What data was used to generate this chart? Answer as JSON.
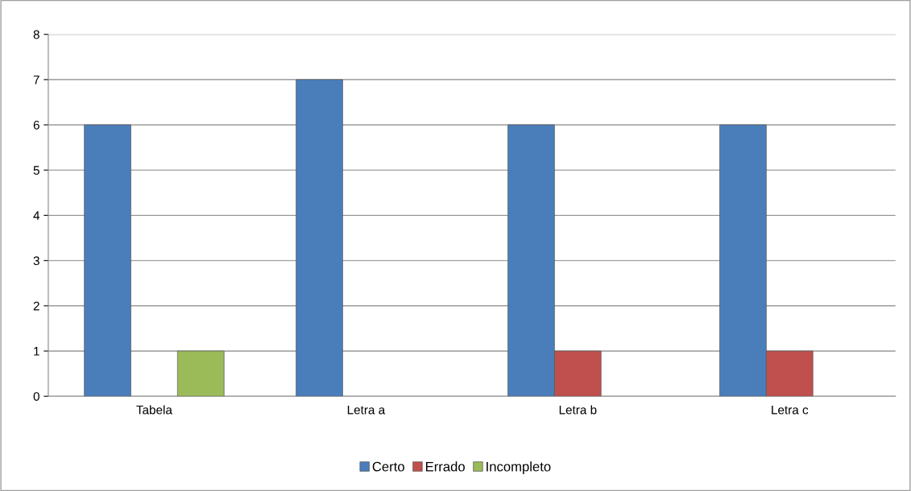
{
  "chart_data": {
    "type": "bar",
    "categories": [
      "Tabela",
      "Letra a",
      "Letra b",
      "Letra c"
    ],
    "series": [
      {
        "name": "Certo",
        "color": "#4a7ebb",
        "values": [
          6,
          7,
          6,
          6
        ]
      },
      {
        "name": "Errado",
        "color": "#c0504d",
        "values": [
          null,
          null,
          1,
          1
        ]
      },
      {
        "name": "Incompleto",
        "color": "#9bbb59",
        "values": [
          1,
          null,
          null,
          null
        ]
      }
    ],
    "ylim": [
      0,
      8
    ],
    "yticks": [
      0,
      1,
      2,
      3,
      4,
      5,
      6,
      7,
      8
    ],
    "grid": "y",
    "legend": "bottom"
  }
}
